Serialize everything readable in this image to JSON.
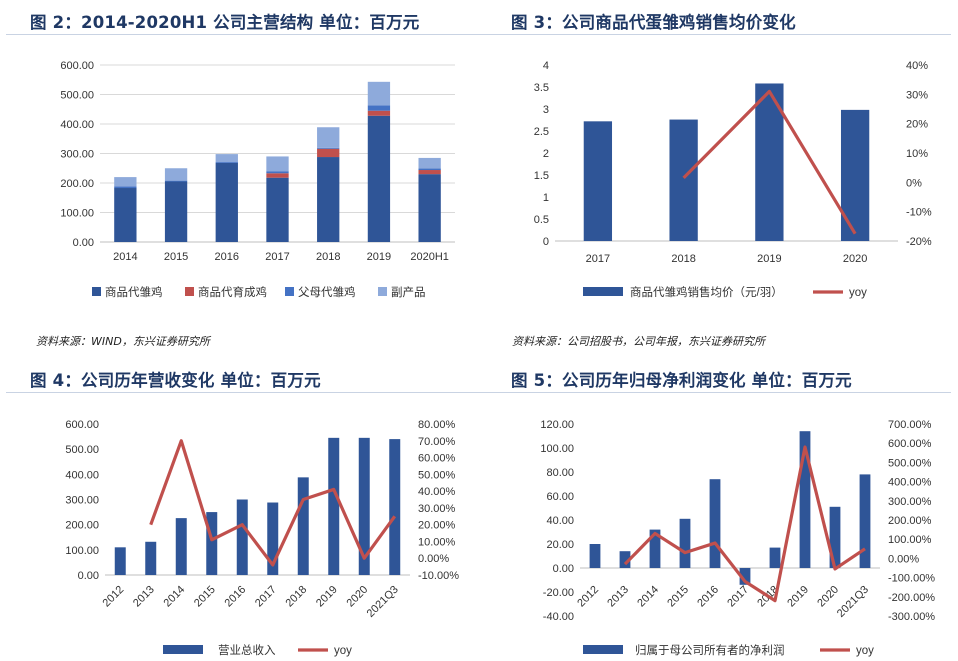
{
  "colors": {
    "dark_blue": "#2f5597",
    "red": "#c0504d",
    "mid_blue": "#4472c4",
    "light_blue": "#8eaadb",
    "yoy_red": "#c0504d",
    "title": "#1f3864"
  },
  "figures": [
    {
      "title": "图 2：2014-2020H1 公司主营结构 单位：百万元",
      "source": "资料来源：WIND，东兴证券研究所"
    },
    {
      "title": "图 3：公司商品代蛋雏鸡销售均价变化",
      "source": "资料来源：公司招股书，公司年报，东兴证券研究所"
    },
    {
      "title": "图 4：公司历年营收变化 单位：百万元",
      "source": ""
    },
    {
      "title": "图 5：公司历年归母净利润变化 单位：百万元",
      "source": ""
    }
  ],
  "chart_data": [
    {
      "type": "bar",
      "stacked": true,
      "categories": [
        "2014",
        "2015",
        "2016",
        "2017",
        "2018",
        "2019",
        "2020H1"
      ],
      "series": [
        {
          "name": "商品代雏鸡",
          "values": [
            183,
            205,
            268,
            218,
            288,
            428,
            230
          ]
        },
        {
          "name": "商品代育成鸡",
          "values": [
            0,
            0,
            0,
            15,
            28,
            17,
            14
          ]
        },
        {
          "name": "父母代雏鸡",
          "values": [
            5,
            3,
            3,
            7,
            3,
            18,
            5
          ]
        },
        {
          "name": "副产品",
          "values": [
            32,
            42,
            27,
            50,
            70,
            80,
            36
          ]
        }
      ],
      "ylim": [
        0,
        600
      ],
      "yticks": [
        "0.00",
        "100.00",
        "200.00",
        "300.00",
        "400.00",
        "500.00",
        "600.00"
      ],
      "legend": "bottom",
      "grid": true
    },
    {
      "type": "bar+line",
      "categories": [
        "2017",
        "2018",
        "2019",
        "2020"
      ],
      "bars": {
        "name": "商品代雏鸡销售均价（元/羽）",
        "values": [
          2.72,
          2.76,
          3.58,
          2.98
        ]
      },
      "line": {
        "name": "yoy",
        "values": [
          null,
          0.015,
          0.31,
          -0.175
        ]
      },
      "ylim": [
        0,
        4
      ],
      "yticks": [
        "0",
        "0.5",
        "1",
        "1.5",
        "2",
        "2.5",
        "3",
        "3.5",
        "4"
      ],
      "y2lim": [
        -0.2,
        0.4
      ],
      "y2ticks": [
        "-20%",
        "-10%",
        "0%",
        "10%",
        "20%",
        "30%",
        "40%"
      ],
      "legend": "bottom",
      "grid": false
    },
    {
      "type": "bar+line",
      "categories": [
        "2012",
        "2013",
        "2014",
        "2015",
        "2016",
        "2017",
        "2018",
        "2019",
        "2020",
        "2021Q3"
      ],
      "bars": {
        "name": "营业总收入",
        "values": [
          110,
          132,
          226,
          250,
          300,
          288,
          388,
          545,
          545,
          540
        ]
      },
      "line": {
        "name": "yoy",
        "values": [
          null,
          0.2,
          0.7,
          0.11,
          0.2,
          -0.04,
          0.35,
          0.41,
          0.0,
          0.25
        ]
      },
      "ylim": [
        0,
        600
      ],
      "yticks": [
        "0.00",
        "100.00",
        "200.00",
        "300.00",
        "400.00",
        "500.00",
        "600.00"
      ],
      "y2lim": [
        -0.1,
        0.8
      ],
      "y2ticks": [
        "-10.00%",
        "0.00%",
        "10.00%",
        "20.00%",
        "30.00%",
        "40.00%",
        "50.00%",
        "60.00%",
        "70.00%",
        "80.00%"
      ],
      "legend": "bottom",
      "grid": false
    },
    {
      "type": "bar+line",
      "categories": [
        "2012",
        "2013",
        "2014",
        "2015",
        "2016",
        "2017",
        "2018",
        "2019",
        "2020",
        "2021Q3"
      ],
      "bars": {
        "name": "归属于母公司所有者的净利润",
        "values": [
          20,
          14,
          32,
          41,
          74,
          -14,
          17,
          114,
          51,
          78
        ]
      },
      "line": {
        "name": "yoy",
        "values": [
          null,
          -0.3,
          1.3,
          0.3,
          0.8,
          -1.2,
          -2.2,
          5.8,
          -0.55,
          0.5
        ]
      },
      "ylim": [
        -40,
        120
      ],
      "yticks": [
        "-40.00",
        "-20.00",
        "0.00",
        "20.00",
        "40.00",
        "60.00",
        "80.00",
        "100.00",
        "120.00"
      ],
      "y2lim": [
        -3,
        7
      ],
      "y2ticks": [
        "-300.00%",
        "-200.00%",
        "-100.00%",
        "0.00%",
        "100.00%",
        "200.00%",
        "300.00%",
        "400.00%",
        "500.00%",
        "600.00%",
        "700.00%"
      ],
      "legend": "bottom",
      "grid": false
    }
  ]
}
